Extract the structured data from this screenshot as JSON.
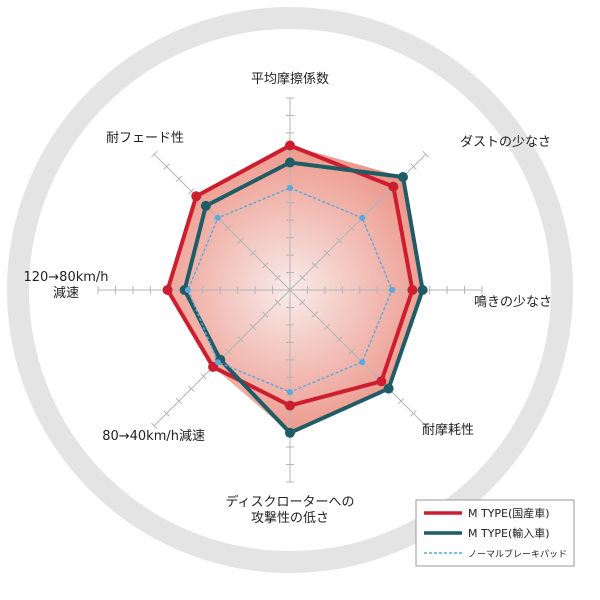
{
  "chart_data": {
    "type": "radar",
    "categories": [
      [
        "平均摩擦係数"
      ],
      [
        "ダストの少なさ"
      ],
      [
        "鳴きの少なさ"
      ],
      [
        "耐摩耗性"
      ],
      [
        "ディスクローターへの",
        "攻撃性の低さ"
      ],
      [
        "80→40km/h減速"
      ],
      [
        "120→80km/h",
        "減速"
      ],
      [
        "耐フェード性"
      ]
    ],
    "series": [
      {
        "name": "M TYPE(国産車)",
        "values": [
          8.5,
          8.6,
          7.2,
          7.6,
          6.8,
          6.4,
          7.2,
          7.8
        ],
        "color": "#cc1e2e",
        "dashed": false
      },
      {
        "name": "M TYPE(輸入車)",
        "values": [
          7.5,
          9.4,
          7.8,
          8.2,
          8.4,
          5.8,
          6.2,
          7.0
        ],
        "color": "#1f5c66",
        "dashed": false
      },
      {
        "name": "ノーマルブレーキパッド",
        "values": [
          6.0,
          6.0,
          6.0,
          6.0,
          6.0,
          6.0,
          6.0,
          6.0
        ],
        "color": "#5aa8dc",
        "dashed": true
      }
    ],
    "rmax": 10,
    "legend_position": "bottom-right",
    "colors": {
      "fill_gradient_center": "#f8ecea",
      "fill_gradient_edge": "#eb8a7c",
      "ring": "#e4e4e4"
    }
  }
}
